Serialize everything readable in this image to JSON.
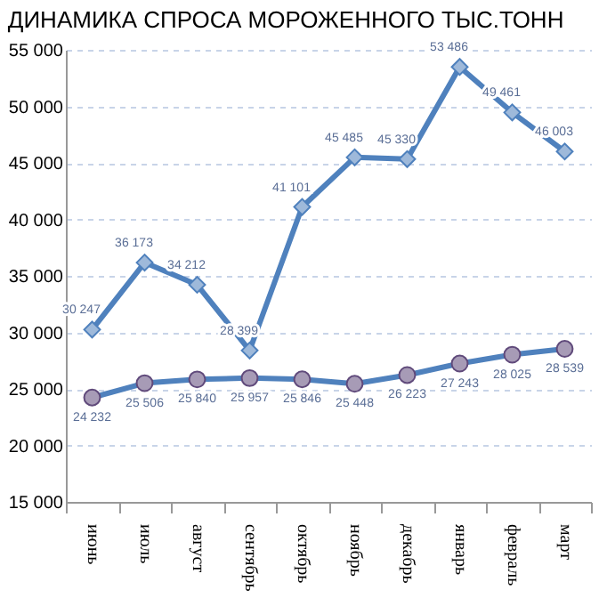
{
  "chart_data": {
    "type": "line",
    "title": "ДИНАМИКА СПРОСА МОРОЖЕННОГО ТЫС.ТОНН",
    "categories": [
      "июнь",
      "июль",
      "август",
      "сентябрь",
      "октябрь",
      "ноябрь",
      "декабрь",
      "январь",
      "февраль",
      "март"
    ],
    "series": [
      {
        "color": "#4f81bd",
        "marker": "diamond",
        "values": [
          30247,
          36173,
          34212,
          28399,
          41101,
          45485,
          45330,
          53486,
          49461,
          46003
        ],
        "value_labels": [
          "30 247",
          "36 173",
          "34 212",
          "28 399",
          "41 101",
          "45 485",
          "45 330",
          "53 486",
          "49 461",
          "46 003"
        ]
      },
      {
        "color": "#604a7b",
        "marker": "circle",
        "values": [
          24232,
          25506,
          25840,
          25957,
          25846,
          25448,
          26223,
          27243,
          28025,
          28539
        ],
        "value_labels": [
          "24 232",
          "25 506",
          "25 840",
          "25 957",
          "25 846",
          "25 448",
          "26 223",
          "27 243",
          "28 025",
          "28 539"
        ]
      }
    ],
    "ylim": [
      15000,
      55000
    ],
    "yticks": [
      {
        "value": 15000,
        "label": "15 000"
      },
      {
        "value": 20000,
        "label": "20 000"
      },
      {
        "value": 25000,
        "label": "25 000"
      },
      {
        "value": 30000,
        "label": "30 000"
      },
      {
        "value": 35000,
        "label": "35 000"
      },
      {
        "value": 40000,
        "label": "40 000"
      },
      {
        "value": 45000,
        "label": "45 000"
      },
      {
        "value": 50000,
        "label": "50 000"
      },
      {
        "value": 55000,
        "label": "55 000"
      }
    ],
    "grid": "y",
    "legend": false,
    "line_style": "solid"
  }
}
